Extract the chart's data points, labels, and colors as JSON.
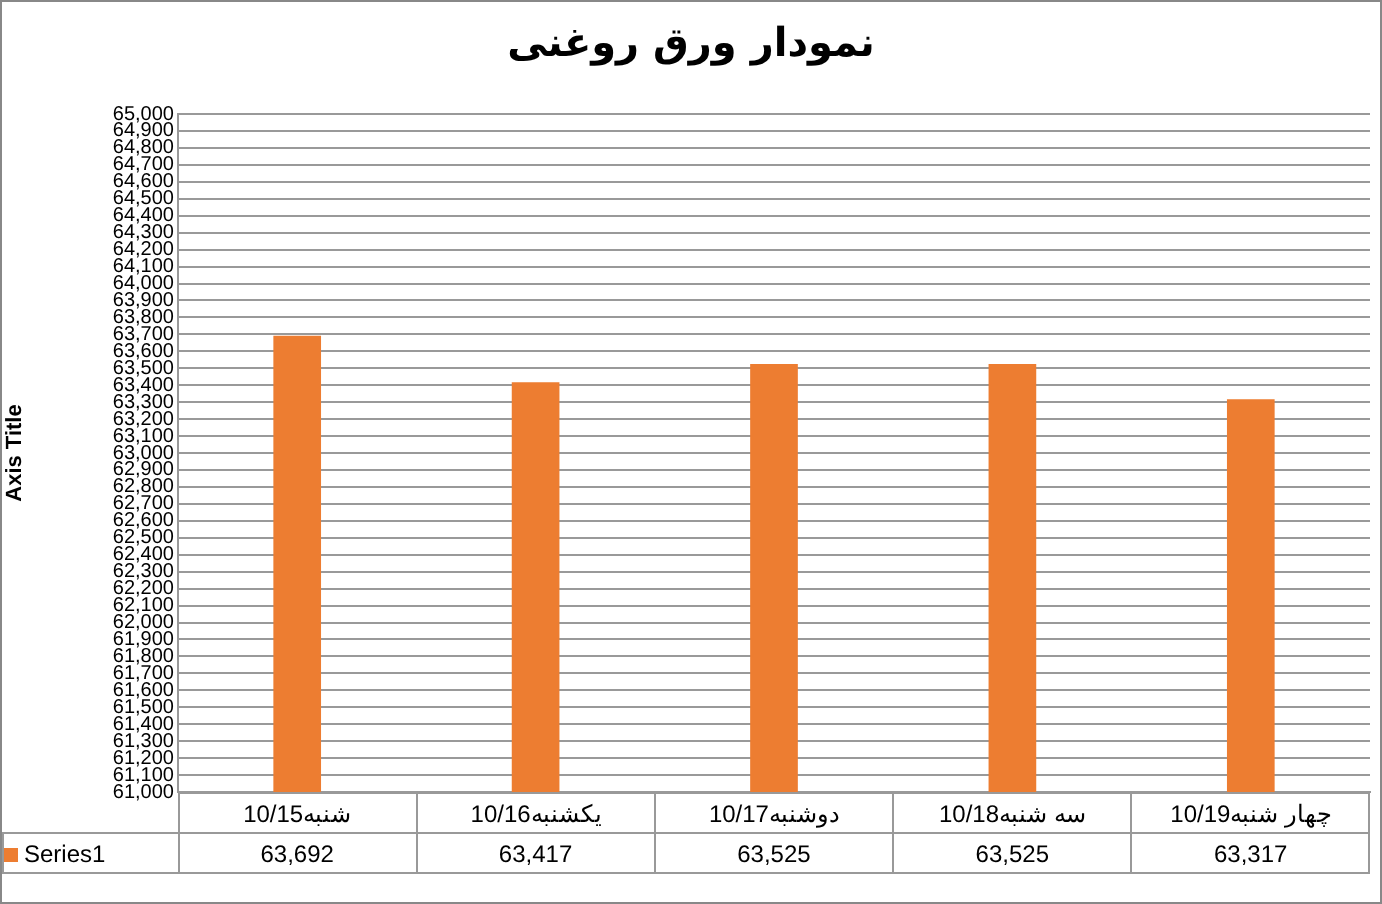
{
  "chart_data": {
    "type": "bar",
    "title": "نمودار ورق روغنی",
    "ylabel": "Axis Title",
    "categories": [
      "شنبه10/15",
      "یکشنبه10/16",
      "دوشنبه10/17",
      "سه شنبه10/18",
      "چهار شنبه10/19"
    ],
    "series": [
      {
        "name": "Series1",
        "color": "#ed7d31",
        "values": [
          63692,
          63417,
          63525,
          63525,
          63317
        ],
        "value_labels": [
          "63,692",
          "63,417",
          "63,525",
          "63,525",
          "63,317"
        ]
      }
    ],
    "ylim": [
      61000,
      65000
    ],
    "yticks": [
      {
        "value": 61000,
        "label": "61,000"
      },
      {
        "value": 61100,
        "label": "61,100"
      },
      {
        "value": 61200,
        "label": "61,200"
      },
      {
        "value": 61300,
        "label": "61,300"
      },
      {
        "value": 61400,
        "label": "61,400"
      },
      {
        "value": 61500,
        "label": "61,500"
      },
      {
        "value": 61600,
        "label": "61,600"
      },
      {
        "value": 61700,
        "label": "61,700"
      },
      {
        "value": 61800,
        "label": "61,800"
      },
      {
        "value": 61900,
        "label": "61,900"
      },
      {
        "value": 62000,
        "label": "62,000"
      },
      {
        "value": 62100,
        "label": "62,100"
      },
      {
        "value": 62200,
        "label": "62,200"
      },
      {
        "value": 62300,
        "label": "62,300"
      },
      {
        "value": 62400,
        "label": "62,400"
      },
      {
        "value": 62500,
        "label": "62,500"
      },
      {
        "value": 62600,
        "label": "62,600"
      },
      {
        "value": 62700,
        "label": "62,700"
      },
      {
        "value": 62800,
        "label": "62,800"
      },
      {
        "value": 62900,
        "label": "62,900"
      },
      {
        "value": 63000,
        "label": "63,000"
      },
      {
        "value": 63100,
        "label": "63,100"
      },
      {
        "value": 63200,
        "label": "63,200"
      },
      {
        "value": 63300,
        "label": "63,300"
      },
      {
        "value": 63400,
        "label": "63,400"
      },
      {
        "value": 63500,
        "label": "63,500"
      },
      {
        "value": 63600,
        "label": "63,600"
      },
      {
        "value": 63700,
        "label": "63,700"
      },
      {
        "value": 63800,
        "label": "63,800"
      },
      {
        "value": 63900,
        "label": "63,900"
      },
      {
        "value": 64000,
        "label": "64,000"
      },
      {
        "value": 64100,
        "label": "64,100"
      },
      {
        "value": 64200,
        "label": "64,200"
      },
      {
        "value": 64300,
        "label": "64,300"
      },
      {
        "value": 64400,
        "label": "64,400"
      },
      {
        "value": 64500,
        "label": "64,500"
      },
      {
        "value": 64600,
        "label": "64,600"
      },
      {
        "value": 64700,
        "label": "64,700"
      },
      {
        "value": 64800,
        "label": "64,800"
      },
      {
        "value": 64900,
        "label": "64,900"
      },
      {
        "value": 65000,
        "label": "65,000"
      }
    ],
    "grid": "y",
    "legend": "bottom left"
  }
}
